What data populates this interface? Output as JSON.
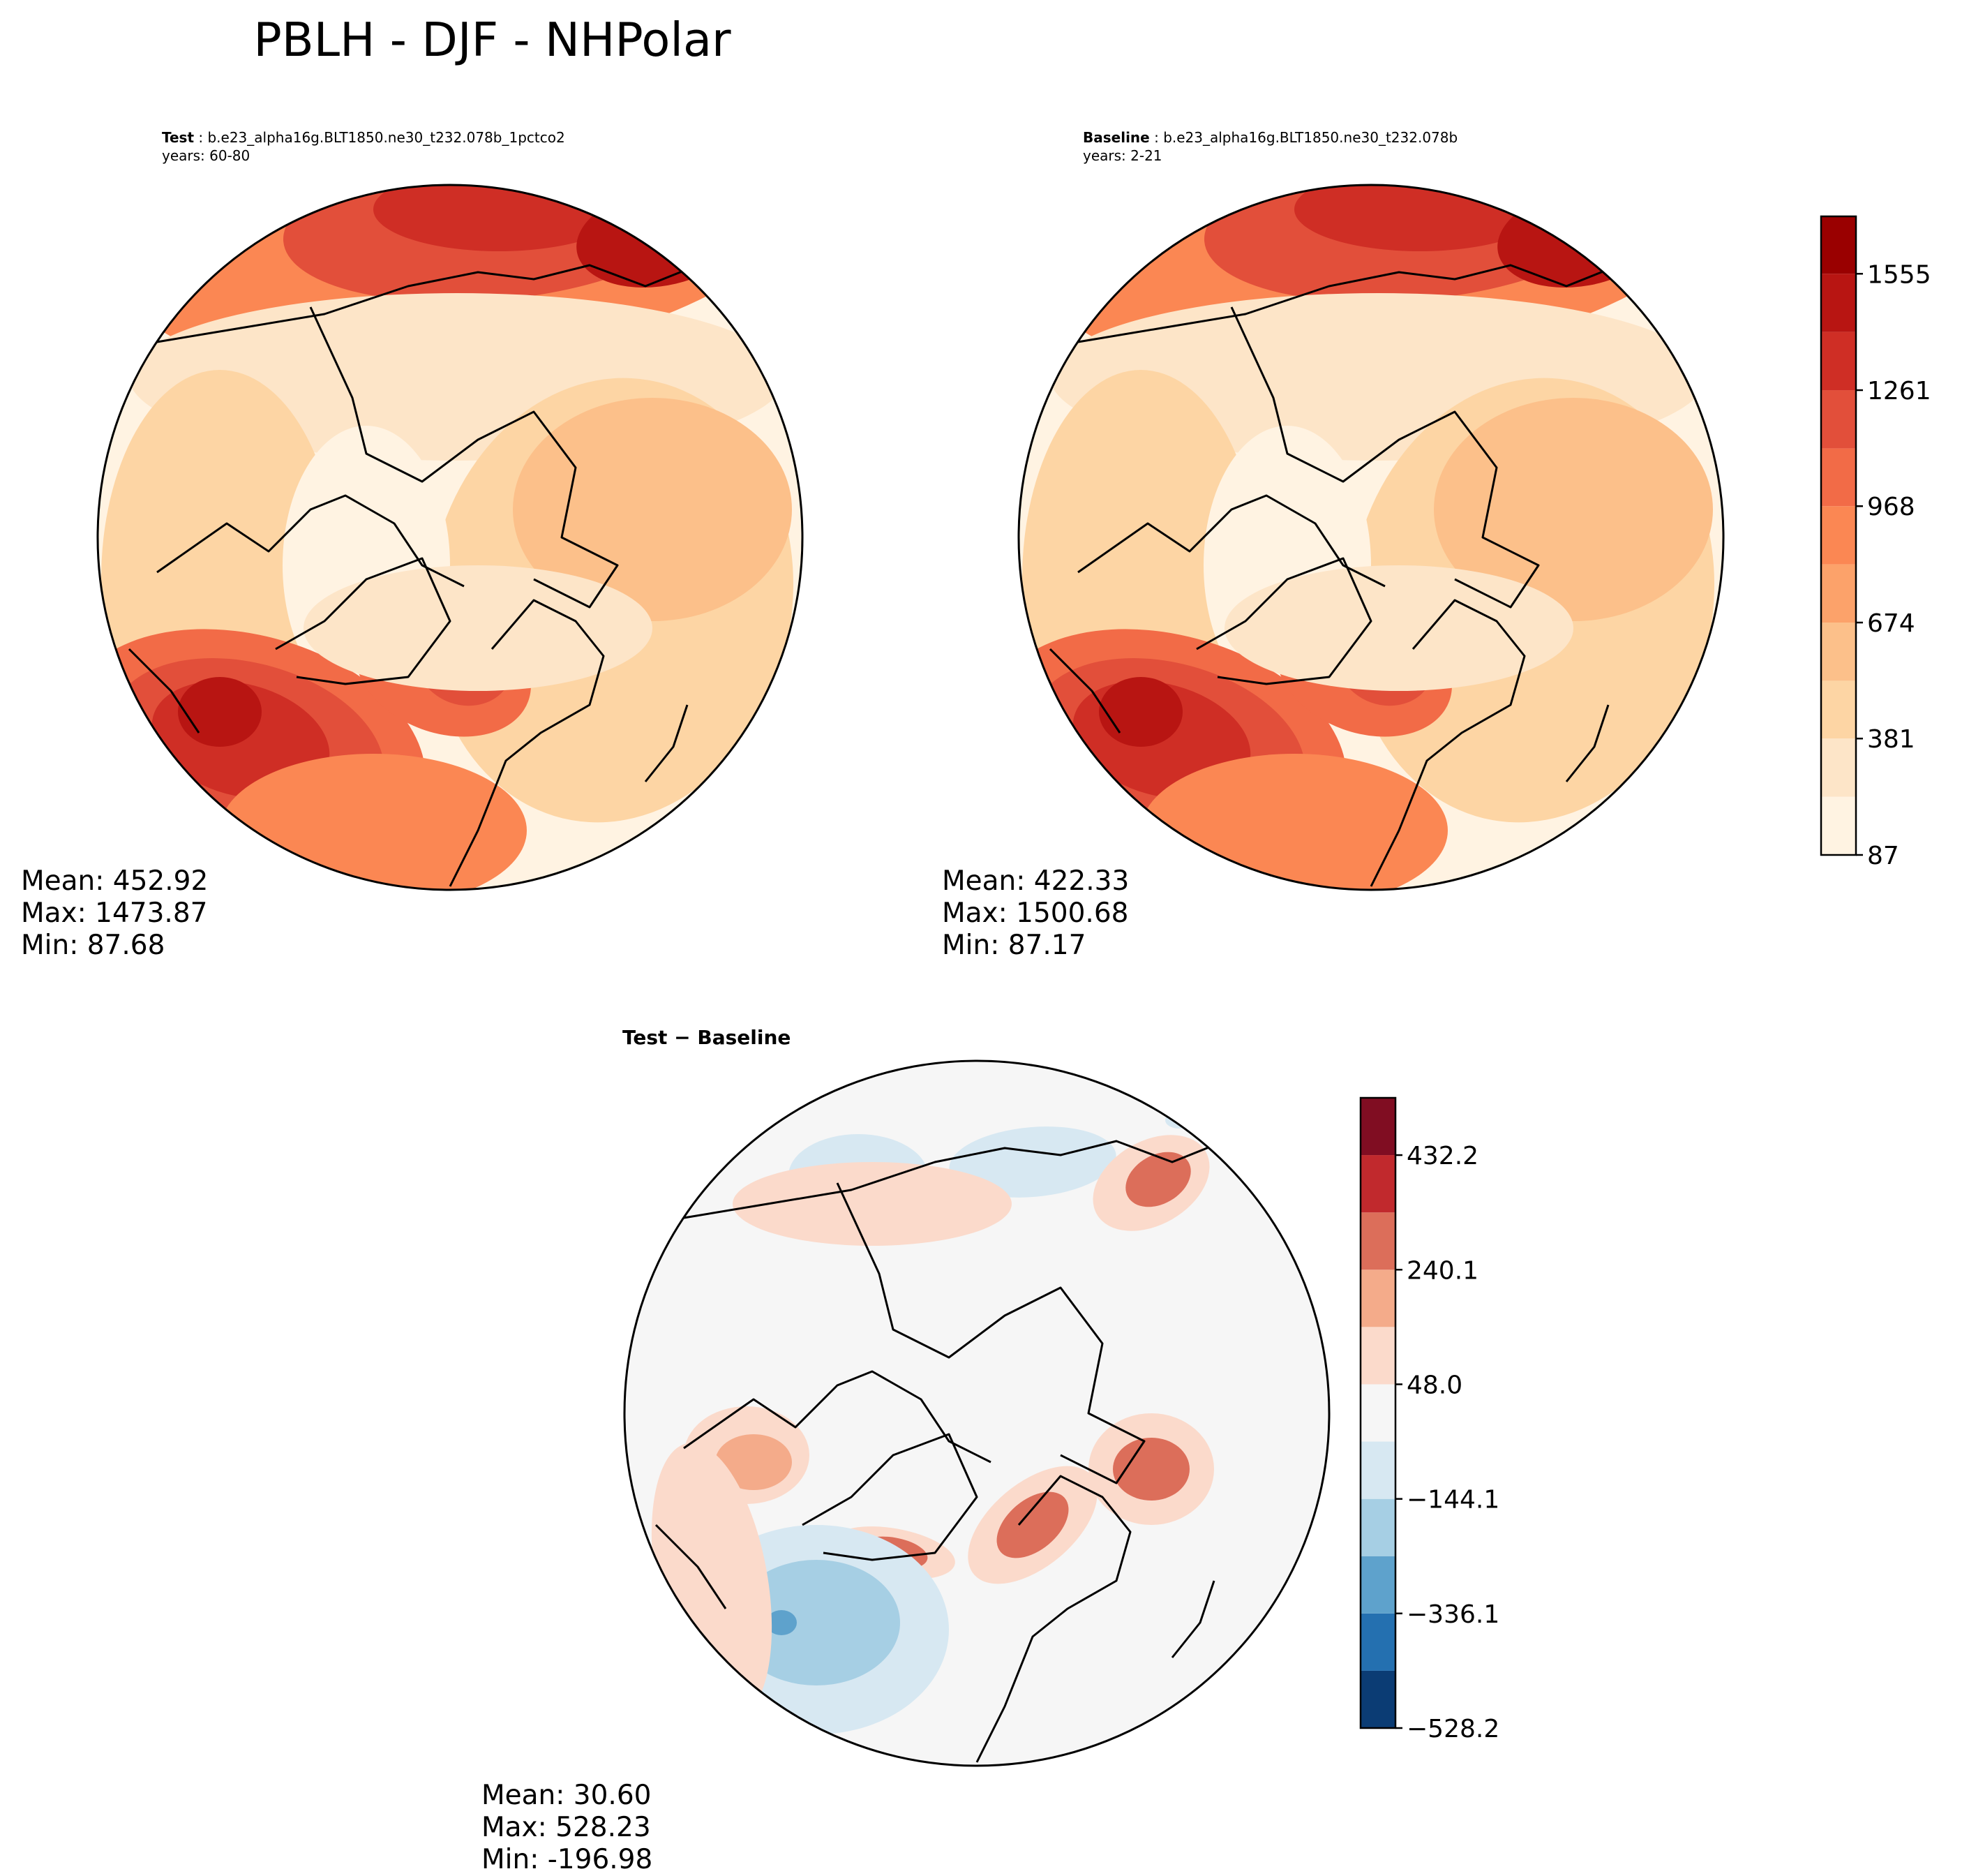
{
  "figure": {
    "title": "PBLH - DJF - NHPolar"
  },
  "panels": [
    {
      "id": "test",
      "label": "Test",
      "case": "b.e23_alpha16g.BLT1850.ne30_t232.078b_1pctco2",
      "years": "years: 60-80",
      "stats": {
        "mean": "Mean: 452.92",
        "max": "Max: 1473.87",
        "min": "Min: 87.68"
      }
    },
    {
      "id": "baseline",
      "label": "Baseline",
      "case": "b.e23_alpha16g.BLT1850.ne30_t232.078b",
      "years": "years: 2-21",
      "stats": {
        "mean": "Mean: 422.33",
        "max": "Max: 1500.68",
        "min": "Min: 87.17"
      }
    },
    {
      "id": "diff",
      "label": "Test − Baseline",
      "stats": {
        "mean": "Mean: 30.60",
        "max": "Max: 528.23",
        "min": "Min: -196.98"
      }
    }
  ],
  "chart_data": [
    {
      "type": "heatmap",
      "projection": "north polar stereographic",
      "panel": "test",
      "colormap": "OrRd",
      "colorbar": {
        "ticks": [
          "87",
          "381",
          "674",
          "968",
          "1261",
          "1555"
        ],
        "levels": [
          87,
          234,
          381,
          527,
          674,
          821,
          968,
          1114,
          1261,
          1408,
          1555,
          1700
        ],
        "colors": [
          "#fff3e2",
          "#fde5c8",
          "#fdd5a4",
          "#fcc08a",
          "#fca26a",
          "#fb8753",
          "#f26b47",
          "#e24f3a",
          "#cf2e25",
          "#b81512",
          "#9a0000"
        ]
      },
      "stats": {
        "mean": 452.92,
        "max": 1473.87,
        "min": 87.68
      }
    },
    {
      "type": "heatmap",
      "projection": "north polar stereographic",
      "panel": "baseline",
      "colormap": "OrRd",
      "colorbar": {
        "ticks": [
          "87",
          "381",
          "674",
          "968",
          "1261",
          "1555"
        ],
        "levels": [
          87,
          234,
          381,
          527,
          674,
          821,
          968,
          1114,
          1261,
          1408,
          1555,
          1700
        ],
        "colors": [
          "#fff3e2",
          "#fde5c8",
          "#fdd5a4",
          "#fcc08a",
          "#fca26a",
          "#fb8753",
          "#f26b47",
          "#e24f3a",
          "#cf2e25",
          "#b81512",
          "#9a0000"
        ]
      },
      "stats": {
        "mean": 422.33,
        "max": 1500.68,
        "min": 87.17
      }
    },
    {
      "type": "heatmap",
      "projection": "north polar stereographic",
      "panel": "diff",
      "colormap": "RdBu_r",
      "colorbar": {
        "ticks": [
          "432.2",
          "240.1",
          "48.0",
          "−144.1",
          "−336.1",
          "−528.2"
        ],
        "levels": [
          -528.2,
          -432.2,
          -336.1,
          -240.1,
          -144.1,
          -48.0,
          48.0,
          144.1,
          240.1,
          336.1,
          432.2,
          528.2
        ],
        "colors": [
          "#0b3c74",
          "#2470b0",
          "#5ea2cc",
          "#a6cfe4",
          "#d7e8f2",
          "#f6f6f6",
          "#fbdacb",
          "#f4ab8a",
          "#dc6e5a",
          "#c1292d",
          "#800d22"
        ]
      },
      "stats": {
        "mean": 30.6,
        "max": 528.23,
        "min": -196.98
      }
    }
  ]
}
